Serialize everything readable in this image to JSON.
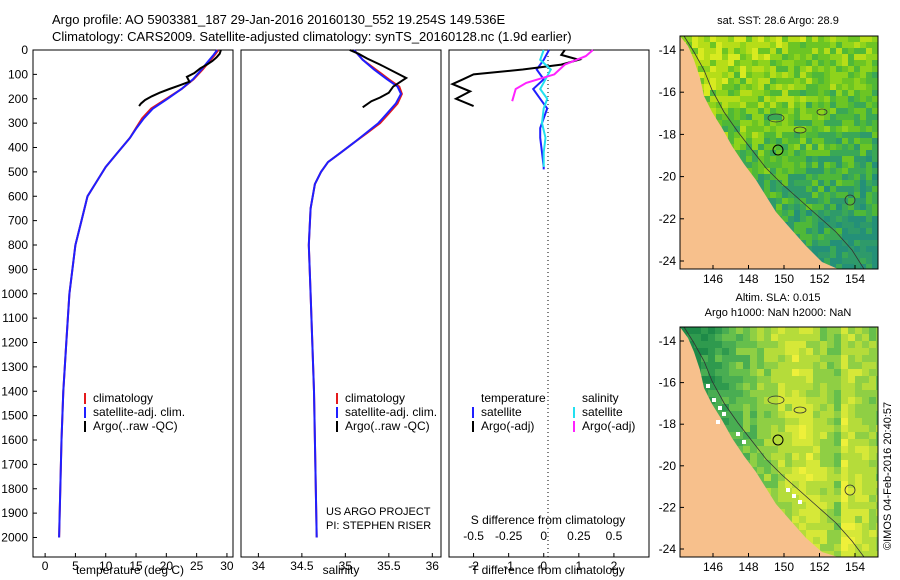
{
  "header": {
    "title_line1": "Argo profile: AO 5903381_187 29-Jan-2016 20160130_552 19.254S 149.536E",
    "title_line2": "Climatology: CARS2009. Satellite-adjusted climatology: synTS_20160128.nc (1.9d earlier)"
  },
  "side_label": "©IMOS 04-Feb-2016 20:40:57",
  "colors": {
    "climatology": "#e41a1c",
    "satellite": "#1f1fff",
    "argo": "#000000",
    "sal_satellite": "#22e0f0",
    "sal_argo": "#ff22ff",
    "land": "#f7c08c"
  },
  "chart_data": [
    {
      "type": "line",
      "id": "temperature",
      "xlabel": "temperature (deg C)",
      "ylabel": "",
      "xlim": [
        -2,
        31
      ],
      "ylim": [
        2080,
        0
      ],
      "xticks": [
        0,
        5,
        10,
        15,
        20,
        25,
        30
      ],
      "yticks": [
        0,
        100,
        200,
        300,
        400,
        500,
        600,
        700,
        800,
        900,
        1000,
        1100,
        1200,
        1300,
        1400,
        1500,
        1600,
        1700,
        1800,
        1900,
        2000
      ],
      "legend": [
        "climatology",
        "satellite-adj. clim.",
        "Argo(..raw -QC)"
      ],
      "series": [
        {
          "name": "climatology",
          "color": "climatology",
          "x": [
            28.6,
            28.0,
            27.0,
            26.0,
            24.5,
            22.5,
            20.0,
            17.5,
            16.0,
            15.0,
            14.0,
            12.0,
            10.0,
            8.5,
            7.0,
            6.0,
            5.0,
            4.5,
            4.0,
            3.5,
            3.0,
            2.7,
            2.5,
            2.4,
            2.3
          ],
          "y": [
            0,
            20,
            50,
            80,
            120,
            160,
            200,
            240,
            280,
            320,
            360,
            420,
            480,
            540,
            600,
            700,
            800,
            900,
            1000,
            1200,
            1400,
            1600,
            1800,
            1900,
            2000
          ]
        },
        {
          "name": "satellite-adj. clim.",
          "color": "satellite",
          "x": [
            28.4,
            27.8,
            26.8,
            25.8,
            24.4,
            22.5,
            20.2,
            17.8,
            16.3,
            15.1,
            14.0,
            12.0,
            10.0,
            8.5,
            7.0,
            6.0,
            5.0,
            4.5,
            4.0,
            3.5,
            3.0,
            2.7,
            2.5,
            2.4,
            2.3
          ],
          "y": [
            0,
            20,
            50,
            80,
            120,
            160,
            200,
            240,
            280,
            320,
            360,
            420,
            480,
            540,
            600,
            700,
            800,
            900,
            1000,
            1200,
            1400,
            1600,
            1800,
            1900,
            2000
          ]
        },
        {
          "name": "Argo(..raw -QC)",
          "color": "argo",
          "x": [
            29.0,
            28.8,
            28.3,
            27.6,
            26.7,
            25.6,
            24.6,
            23.4,
            23.8,
            22.2,
            20.5,
            18.9,
            17.6,
            16.5,
            15.8,
            15.5
          ],
          "y": [
            0,
            15,
            30,
            45,
            60,
            75,
            95,
            110,
            130,
            145,
            160,
            175,
            190,
            205,
            220,
            230
          ]
        }
      ]
    },
    {
      "type": "line",
      "id": "salinity",
      "xlabel": "salinity",
      "xlim": [
        33.8,
        36.1
      ],
      "ylim": [
        2080,
        0
      ],
      "xticks": [
        34,
        34.5,
        35,
        35.5,
        36
      ],
      "legend": [
        "climatology",
        "satellite-adj. clim.",
        "Argo(..raw -QC)"
      ],
      "annotation": [
        "US ARGO PROJECT",
        "PI: STEPHEN RISER"
      ],
      "series": [
        {
          "name": "climatology",
          "color": "climatology",
          "x": [
            35.1,
            35.2,
            35.35,
            35.5,
            35.62,
            35.65,
            35.6,
            35.5,
            35.4,
            35.25,
            35.1,
            34.95,
            34.8,
            34.72,
            34.65,
            34.6,
            34.58,
            34.6,
            34.62,
            34.64,
            34.65,
            34.66,
            34.67
          ],
          "y": [
            0,
            40,
            80,
            120,
            150,
            180,
            220,
            260,
            300,
            340,
            380,
            420,
            460,
            500,
            550,
            650,
            800,
            1000,
            1200,
            1400,
            1600,
            1800,
            2000
          ]
        },
        {
          "name": "satellite-adj. clim.",
          "color": "satellite",
          "x": [
            35.1,
            35.2,
            35.33,
            35.48,
            35.6,
            35.64,
            35.58,
            35.48,
            35.38,
            35.24,
            35.1,
            34.95,
            34.8,
            34.72,
            34.65,
            34.6,
            34.58,
            34.6,
            34.62,
            34.64,
            34.65,
            34.66,
            34.67
          ],
          "y": [
            0,
            40,
            80,
            120,
            150,
            180,
            220,
            260,
            300,
            340,
            380,
            420,
            460,
            500,
            550,
            650,
            800,
            1000,
            1200,
            1400,
            1600,
            1800,
            2000
          ]
        },
        {
          "name": "Argo(..raw -QC)",
          "color": "argo",
          "x": [
            35.05,
            35.15,
            35.25,
            35.4,
            35.7,
            35.55,
            35.5,
            35.4,
            35.3,
            35.2
          ],
          "y": [
            0,
            15,
            35,
            60,
            115,
            150,
            175,
            195,
            210,
            235
          ]
        }
      ]
    },
    {
      "type": "line",
      "id": "difference",
      "xlabel": "T difference from climatology",
      "top_label": "S difference from climatology",
      "xlim": [
        -2.7,
        3.0
      ],
      "ylim": [
        2080,
        0
      ],
      "xticks": [
        -2,
        -1,
        0,
        1,
        2
      ],
      "xticks_s": [
        "-0.5",
        "-0.25",
        "0",
        "0.25",
        "0.5"
      ],
      "legend": {
        "temperature_title": "temperature",
        "salinity_title": "salinity",
        "items": [
          "satellite",
          "Argo(-adj)",
          "satellite",
          "Argo(-adj)"
        ]
      },
      "series": [
        {
          "name": "temperature satellite",
          "color": "satellite",
          "x": [
            0.15,
            0.0,
            -0.2,
            0.0,
            -0.3,
            -0.1,
            0.1,
            0.0,
            -0.1,
            -0.1,
            -0.05,
            0.0,
            0.0
          ],
          "y": [
            0,
            40,
            80,
            120,
            160,
            200,
            240,
            280,
            320,
            360,
            420,
            480,
            490
          ]
        },
        {
          "name": "temperature Argo(-adj)",
          "color": "argo",
          "x": [
            0.6,
            0.5,
            1.0,
            0.5,
            -0.6,
            -2.0,
            -2.3,
            -2.6,
            -2.1,
            -2.5,
            -2.0
          ],
          "y": [
            0,
            20,
            40,
            60,
            80,
            100,
            120,
            140,
            170,
            200,
            230
          ]
        },
        {
          "name": "salinity satellite",
          "color": "sal_satellite",
          "x": [
            0.0,
            -0.1,
            0.2,
            0.05,
            -0.1,
            0.1,
            0.0,
            -0.05,
            0.05,
            0.0,
            0.0
          ],
          "y": [
            0,
            40,
            80,
            120,
            160,
            200,
            240,
            300,
            360,
            420,
            480
          ]
        },
        {
          "name": "salinity Argo(-adj)",
          "color": "sal_argo",
          "x": [
            1.4,
            1.2,
            0.6,
            0.3,
            -0.5,
            -0.8,
            -0.9
          ],
          "y": [
            0,
            25,
            60,
            100,
            135,
            160,
            210
          ]
        }
      ]
    },
    {
      "type": "heatmap",
      "id": "sst-map",
      "title": "sat. SST: 28.6 Argo: 28.9",
      "xticks": [
        "146",
        "148",
        "150",
        "152",
        "154"
      ],
      "yticks": [
        "-14",
        "-16",
        "-18",
        "-20",
        "-22",
        "-24"
      ]
    },
    {
      "type": "heatmap",
      "id": "sla-map",
      "title_line1": "Altim. SLA: 0.015",
      "title_line2": "Argo h1000: NaN h2000: NaN",
      "xticks": [
        "146",
        "148",
        "150",
        "152",
        "154"
      ],
      "yticks": [
        "-14",
        "-16",
        "-18",
        "-20",
        "-22",
        "-24"
      ]
    }
  ]
}
